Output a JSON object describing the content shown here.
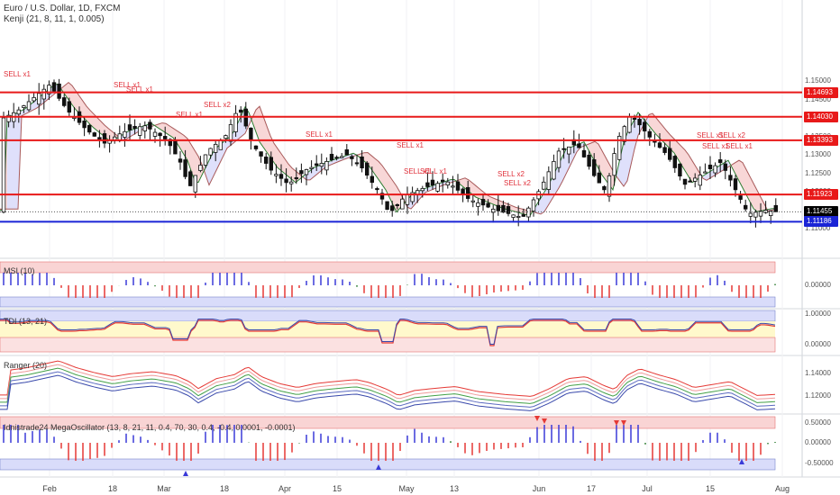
{
  "header": {
    "symbol": "Euro / U.S. Dollar, 1D, FXCM",
    "indicator": "Kenji (21, 8, 11, 1, 0.005)"
  },
  "panes": {
    "msi": {
      "label": "MSI (10)",
      "scale": [
        "0.00000"
      ]
    },
    "tdi": {
      "label": "TDI (13, 21)",
      "scale": [
        "1.00000",
        "0.00000"
      ]
    },
    "ranger": {
      "label": "Ranger (20)",
      "scale": [
        "1.14000",
        "1.12000"
      ]
    },
    "mega": {
      "label": "Idnistrade24 MegaOscillator (13, 8, 21, 11, 0.4, 70, 30, 0.4, -0.4, 0.0001, -0.0001)",
      "scale": [
        "0.50000",
        "0.00000",
        "-0.50000"
      ]
    }
  },
  "price_axis": [
    "1.15000",
    "1.14500",
    "1.14000",
    "1.13500",
    "1.13000",
    "1.12500",
    "1.12000",
    "1.11500",
    "1.11000"
  ],
  "levels": [
    {
      "label": "1.14693",
      "value": 1.14693,
      "color": "#e81919"
    },
    {
      "label": "1.14030",
      "value": 1.1403,
      "color": "#e81919"
    },
    {
      "label": "1.13393",
      "value": 1.13393,
      "color": "#e81919"
    },
    {
      "label": "1.11923",
      "value": 1.11923,
      "color": "#e81919"
    },
    {
      "label": "1.11455",
      "value": 1.11455,
      "color": "#000000"
    },
    {
      "label": "1.11186",
      "value": 1.11186,
      "color": "#1a24d6"
    }
  ],
  "signals": [
    "SELL x1",
    "SELL x1",
    "SELL x1",
    "SELL x2",
    "SELL x1",
    "SELL x1",
    "SELL x1",
    "SELL x1",
    "SELL x1",
    "SELL x2",
    "SELL x2",
    "SELL x1",
    "SELL x1",
    "SELL x2",
    "SELL x1"
  ],
  "time_axis": [
    "Feb",
    "18",
    "Mar",
    "18",
    "Apr",
    "15",
    "May",
    "13",
    "Jun",
    "17",
    "Jul",
    "15",
    "Aug"
  ]
}
